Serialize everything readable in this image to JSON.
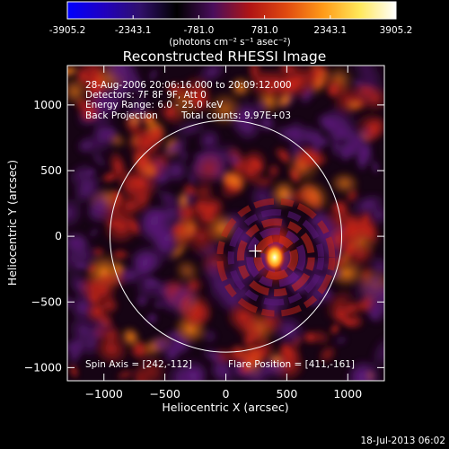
{
  "chart_data": {
    "type": "heatmap",
    "title": "Reconstructed RHESSI Image",
    "xlabel": "Heliocentric X (arcsec)",
    "ylabel": "Heliocentric Y (arcsec)",
    "xlim": [
      -1300,
      1300
    ],
    "ylim": [
      -1100,
      1300
    ],
    "xticks": [
      -1000,
      -500,
      0,
      500,
      1000
    ],
    "yticks": [
      -1000,
      -500,
      0,
      500,
      1000
    ],
    "colorbar": {
      "min": -3905.2,
      "max": 3905.2,
      "tick_values": [
        -3905.2,
        -2343.1,
        -781.0,
        781.0,
        2343.1,
        3905.2
      ],
      "tick_labels": [
        "-3905.2",
        "-2343.1",
        "-781.0",
        "781.0",
        "2343.1",
        "3905.2"
      ],
      "units_label": "(photons cm⁻² s⁻¹ asec⁻²)",
      "colors": [
        "#0000ff",
        "#2000c0",
        "#30106a",
        "#000000",
        "#4a0e5c",
        "#b01414",
        "#e04a10",
        "#ff9a18",
        "#ffe85a",
        "#ffffff"
      ]
    },
    "annotations": {
      "time_range": "28-Aug-2006 20:06:16.000 to 20:09:12.000",
      "detectors": "Detectors: 7F 8F 9F, Att 0",
      "energy_range": "Energy Range: 6.0 - 25.0 keV",
      "method": "Back Projection",
      "total_counts": "Total counts: 9.97E+03",
      "spin_axis_text": "Spin Axis = [242,-112]",
      "flare_position_text": "Flare Position = [411,-161]"
    },
    "spin_axis": [
      242,
      -112
    ],
    "flare_position": [
      411,
      -161
    ],
    "solar_limb_radius": 950,
    "peak_source": {
      "x": 400,
      "y": -160,
      "value": 3905.2
    },
    "grid": false
  },
  "footer": {
    "date": "18-Jul-2013 06:02"
  }
}
